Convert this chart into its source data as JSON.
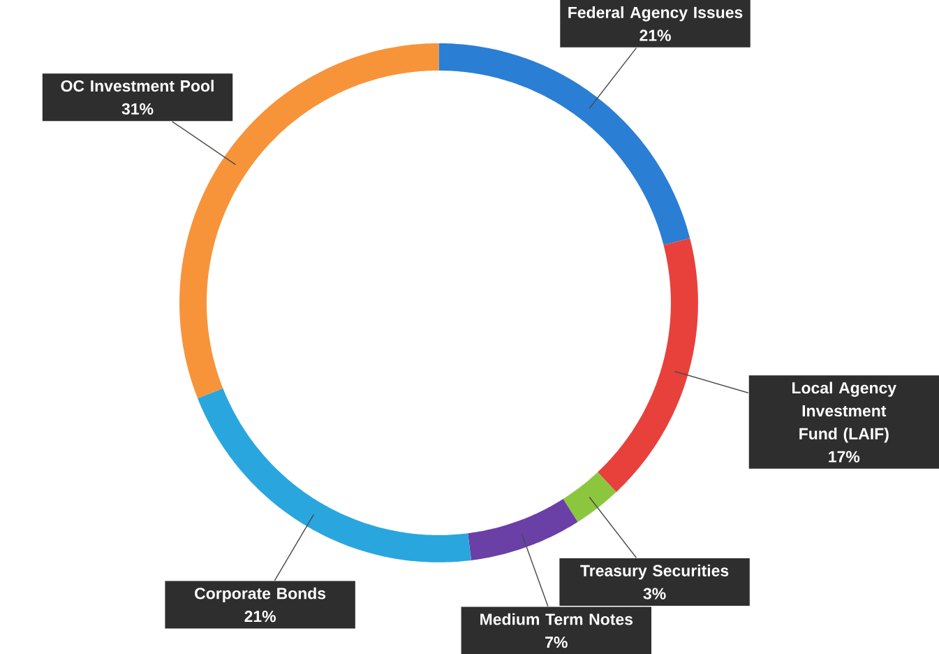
{
  "chart_data": {
    "type": "donut",
    "categories": [
      "Federal Agency Issues",
      "Local Agency Investment Fund (LAIF)",
      "Treasury Securities",
      "Medium Term Notes",
      "Corporate Bonds",
      "OC Investment Pool"
    ],
    "values": [
      21,
      17,
      3,
      7,
      21,
      31
    ],
    "value_labels": [
      "21%",
      "17%",
      "3%",
      "7%",
      "21%",
      "31%"
    ],
    "colors": [
      "#2a7fd4",
      "#e8413c",
      "#8cc63f",
      "#6a3fa6",
      "#2aa6de",
      "#f7943a"
    ]
  }
}
